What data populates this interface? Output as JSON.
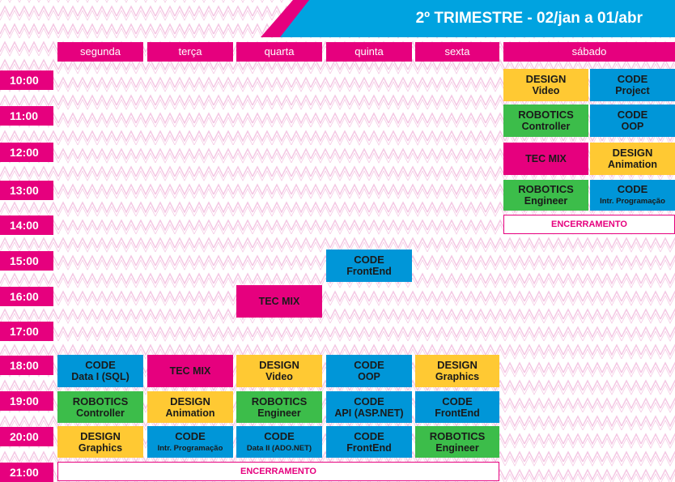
{
  "banner": {
    "title": "2º TRIMESTRE - 02/jan a 01/abr",
    "colors": {
      "blue": "#00a3e0",
      "pink": "#e6007e"
    }
  },
  "days": [
    "segunda",
    "terça",
    "quarta",
    "quinta",
    "sexta",
    "sábado"
  ],
  "times": [
    "10:00",
    "11:00",
    "12:00",
    "13:00",
    "14:00",
    "15:00",
    "16:00",
    "17:00",
    "18:00",
    "19:00",
    "20:00",
    "21:00"
  ],
  "category_colors": {
    "DESIGN": "#ffc933",
    "CODE": "#0096d8",
    "ROBOTICS": "#3cbd4a",
    "TEC MIX": "#e6007e"
  },
  "closing_label": "ENCERRAMENTO",
  "saturday": [
    {
      "time": "10:00",
      "left": {
        "category": "DESIGN",
        "topic": "Video"
      },
      "right": {
        "category": "CODE",
        "topic": "Project"
      }
    },
    {
      "time": "11:00",
      "left": {
        "category": "ROBOTICS",
        "topic": "Controller"
      },
      "right": {
        "category": "CODE",
        "topic": "OOP"
      }
    },
    {
      "time": "12:00",
      "left": {
        "category": "TEC MIX",
        "topic": ""
      },
      "right": {
        "category": "DESIGN",
        "topic": "Animation"
      }
    },
    {
      "time": "13:00",
      "left": {
        "category": "ROBOTICS",
        "topic": "Engineer"
      },
      "right": {
        "category": "CODE",
        "topic": "Intr. Programação"
      }
    },
    {
      "time": "14:00",
      "closing": "ENCERRAMENTO"
    }
  ],
  "weekday_specials": [
    {
      "day": "quinta",
      "time": "15:00",
      "category": "CODE",
      "topic": "FrontEnd"
    },
    {
      "day": "quarta",
      "time": "16:00",
      "category": "TEC MIX",
      "topic": ""
    }
  ],
  "evening": [
    {
      "time": "18:00",
      "slots": [
        {
          "day": "segunda",
          "category": "CODE",
          "topic": "Data I (SQL)"
        },
        {
          "day": "terça",
          "category": "TEC MIX",
          "topic": ""
        },
        {
          "day": "quarta",
          "category": "DESIGN",
          "topic": "Video"
        },
        {
          "day": "quinta",
          "category": "CODE",
          "topic": "OOP"
        },
        {
          "day": "sexta",
          "category": "DESIGN",
          "topic": "Graphics"
        }
      ]
    },
    {
      "time": "19:00",
      "slots": [
        {
          "day": "segunda",
          "category": "ROBOTICS",
          "topic": "Controller"
        },
        {
          "day": "terça",
          "category": "DESIGN",
          "topic": "Animation"
        },
        {
          "day": "quarta",
          "category": "ROBOTICS",
          "topic": "Engineer"
        },
        {
          "day": "quinta",
          "category": "CODE",
          "topic": "API (ASP.NET)"
        },
        {
          "day": "sexta",
          "category": "CODE",
          "topic": "FrontEnd"
        }
      ]
    },
    {
      "time": "20:00",
      "slots": [
        {
          "day": "segunda",
          "category": "DESIGN",
          "topic": "Graphics"
        },
        {
          "day": "terça",
          "category": "CODE",
          "topic": "Intr. Programação"
        },
        {
          "day": "quarta",
          "category": "CODE",
          "topic": "Data II (ADO.NET)"
        },
        {
          "day": "quinta",
          "category": "CODE",
          "topic": "FrontEnd"
        },
        {
          "day": "sexta",
          "category": "ROBOTICS",
          "topic": "Engineer"
        }
      ]
    },
    {
      "time": "21:00",
      "closing": "ENCERRAMENTO"
    }
  ]
}
